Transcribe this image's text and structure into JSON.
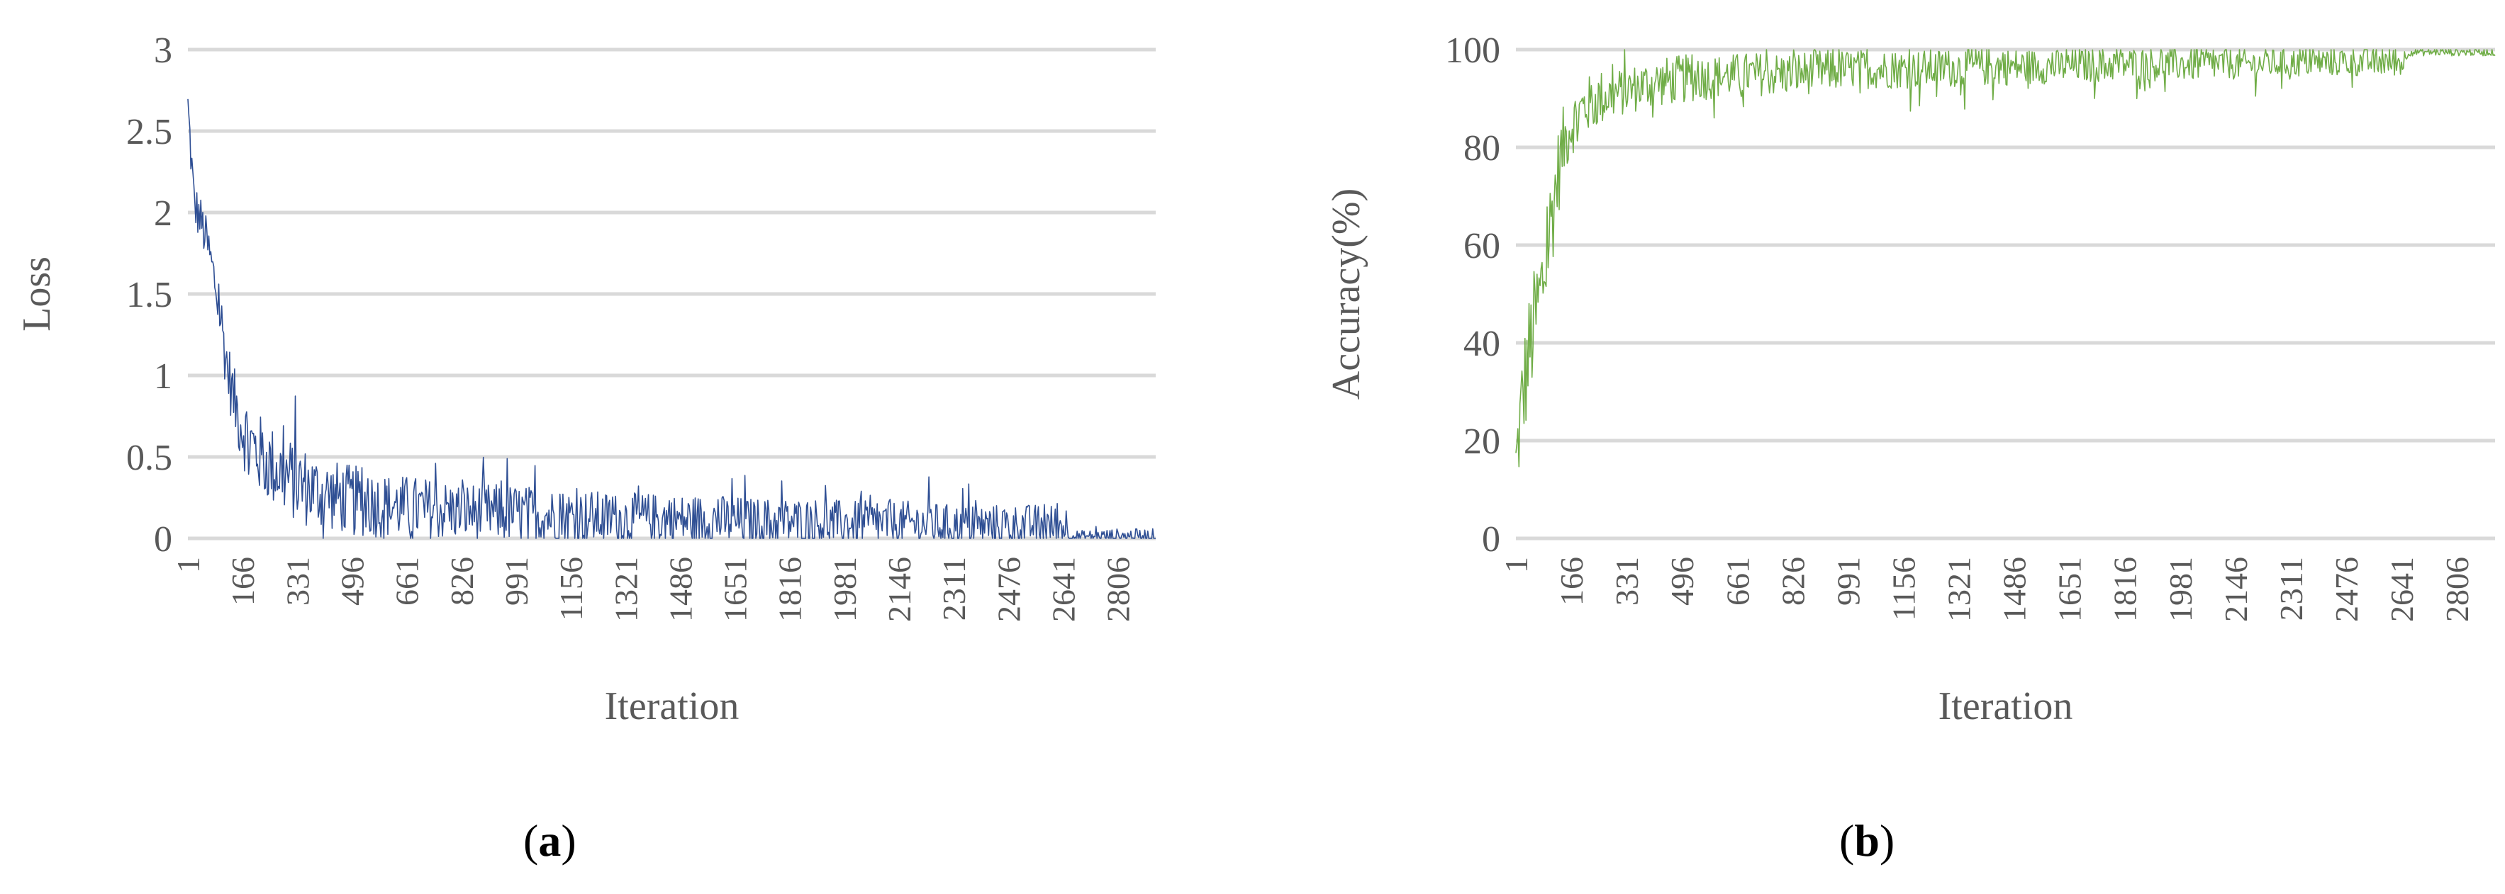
{
  "chart_data": [
    {
      "type": "line",
      "xlabel": "Iteration",
      "ylabel": "Loss",
      "ylim": [
        0,
        3
      ],
      "yticks": [
        "0",
        "0.5",
        "1",
        "1.5",
        "2",
        "2.5",
        "3"
      ],
      "xlim": [
        1,
        2920
      ],
      "xticks": [
        "1",
        "166",
        "331",
        "496",
        "661",
        "826",
        "991",
        "1156",
        "1321",
        "1486",
        "1651",
        "1816",
        "1981",
        "2146",
        "2311",
        "2476",
        "2641",
        "2806"
      ],
      "grid": true,
      "series": [
        {
          "color": "#2F4F94",
          "x": [
            1,
            20,
            40,
            60,
            80,
            100,
            120,
            140,
            160,
            180,
            200,
            250,
            300,
            350,
            400,
            500,
            600,
            700,
            800,
            900,
            1000,
            1100,
            1200,
            1300,
            1400,
            1500,
            1600,
            1700,
            1800,
            1900,
            2000,
            2100,
            2200,
            2300,
            2400,
            2500,
            2600,
            2650,
            2660,
            2700,
            2800,
            2920
          ],
          "values": [
            2.65,
            2.05,
            1.95,
            1.8,
            1.6,
            1.35,
            1.05,
            0.85,
            0.72,
            0.62,
            0.55,
            0.45,
            0.38,
            0.32,
            0.28,
            0.23,
            0.2,
            0.18,
            0.17,
            0.16,
            0.15,
            0.14,
            0.13,
            0.12,
            0.12,
            0.11,
            0.11,
            0.1,
            0.1,
            0.1,
            0.09,
            0.09,
            0.09,
            0.08,
            0.08,
            0.08,
            0.08,
            0.08,
            0.01,
            0.01,
            0.01,
            0.01
          ],
          "spread": [
            0.15,
            0.15,
            0.15,
            0.15,
            0.15,
            0.2,
            0.2,
            0.2,
            0.25,
            0.25,
            0.25,
            0.25,
            0.25,
            0.25,
            0.22,
            0.22,
            0.2,
            0.2,
            0.18,
            0.18,
            0.18,
            0.17,
            0.17,
            0.16,
            0.16,
            0.16,
            0.16,
            0.15,
            0.15,
            0.15,
            0.14,
            0.14,
            0.14,
            0.13,
            0.13,
            0.13,
            0.13,
            0.13,
            0.04,
            0.04,
            0.05,
            0.05
          ]
        }
      ],
      "caption": "(a)"
    },
    {
      "type": "line",
      "xlabel": "Iteration",
      "ylabel": "Accuracy(%)",
      "ylim": [
        0,
        100
      ],
      "yticks": [
        "0",
        "20",
        "40",
        "60",
        "80",
        "100"
      ],
      "xlim": [
        1,
        2920
      ],
      "xticks": [
        "1",
        "166",
        "331",
        "496",
        "661",
        "826",
        "991",
        "1156",
        "1321",
        "1486",
        "1651",
        "1816",
        "1981",
        "2146",
        "2311",
        "2476",
        "2641",
        "2806"
      ],
      "grid": true,
      "series": [
        {
          "color": "#70AD47",
          "x": [
            1,
            20,
            40,
            60,
            80,
            100,
            120,
            140,
            160,
            180,
            200,
            250,
            300,
            350,
            400,
            500,
            600,
            700,
            800,
            900,
            1000,
            1200,
            1400,
            1600,
            1800,
            2000,
            2200,
            2400,
            2600,
            2650,
            2660,
            2700,
            2800,
            2920
          ],
          "values": [
            15,
            28,
            38,
            45,
            52,
            62,
            72,
            80,
            84,
            86,
            88,
            90,
            91,
            92,
            93,
            94,
            94.5,
            95,
            95,
            95.5,
            96,
            96,
            96.5,
            96.5,
            97,
            97,
            97,
            97.5,
            97.5,
            97.5,
            99.5,
            99.5,
            99.5,
            99.5
          ],
          "spread": [
            8,
            12,
            12,
            12,
            12,
            12,
            10,
            8,
            7,
            6,
            6,
            6,
            5,
            5,
            5,
            5,
            4.5,
            4.5,
            4.5,
            4.5,
            4,
            4,
            4,
            3.5,
            3.5,
            3.5,
            3,
            3,
            3,
            3,
            0.8,
            0.8,
            0.8,
            0.8
          ]
        }
      ],
      "caption": "(b)"
    }
  ]
}
